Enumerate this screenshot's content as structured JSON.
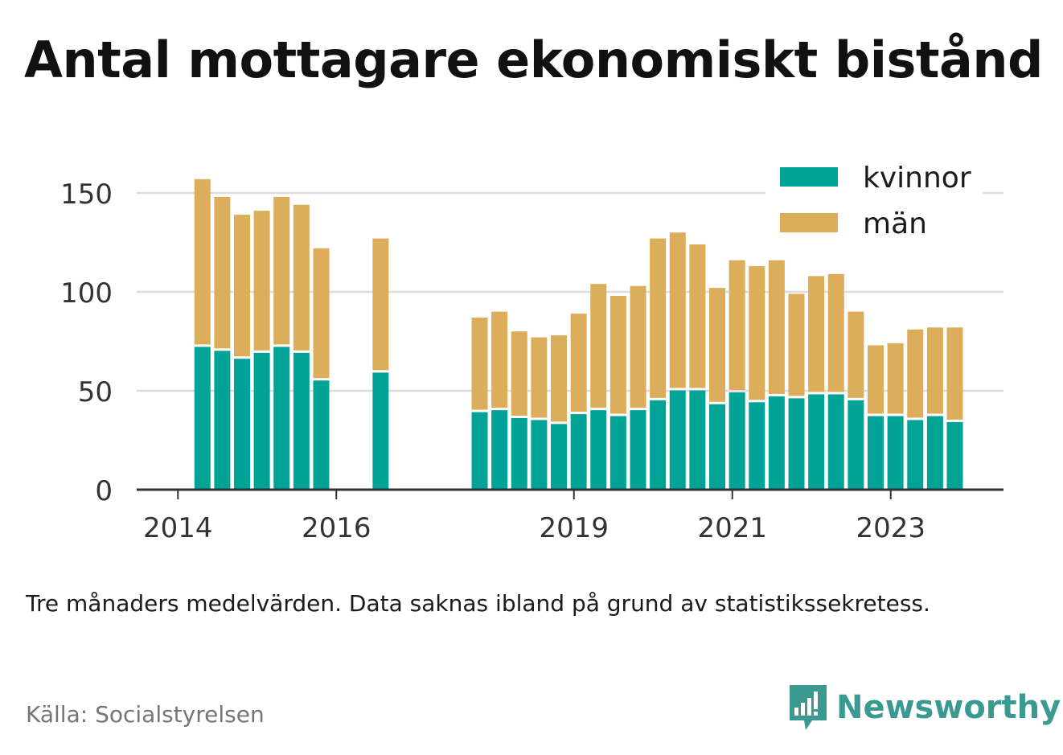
{
  "title": "Antal mottagare ekonomiskt bistånd",
  "subtitle": "Tre månaders medelvärden. Data saknas ibland på grund av statistikssekretess.",
  "source": "Källa: Socialstyrelsen",
  "logo": {
    "text": "Newsworthy",
    "icon": "newsworthy-logo-icon"
  },
  "colors": {
    "kvinnor": "#00a396",
    "man": "#dcad5b",
    "grid": "#dddddd",
    "axis": "#333333",
    "logo": "#3a9a92"
  },
  "chart_data": {
    "type": "bar",
    "stacked": true,
    "title": "Antal mottagare ekonomiskt bistånd",
    "xlabel": "",
    "ylabel": "",
    "ylim": [
      0,
      160
    ],
    "y_ticks": [
      0,
      50,
      100,
      150
    ],
    "x_range": [
      2013.75,
      2024.75
    ],
    "x_ticks": [
      {
        "x": 2014,
        "label": "2014"
      },
      {
        "x": 2016,
        "label": "2016"
      },
      {
        "x": 2019,
        "label": "2019"
      },
      {
        "x": 2021,
        "label": "2021"
      },
      {
        "x": 2023,
        "label": "2023"
      }
    ],
    "legend": {
      "position": "top-right"
    },
    "series": [
      {
        "name": "kvinnor",
        "color": "#00a396"
      },
      {
        "name": "män",
        "color": "#dcad5b"
      }
    ],
    "points": [
      {
        "x": 2014.33,
        "kvinnor": 73,
        "man": 84
      },
      {
        "x": 2014.58,
        "kvinnor": 71,
        "man": 77
      },
      {
        "x": 2014.83,
        "kvinnor": 67,
        "man": 72
      },
      {
        "x": 2015.08,
        "kvinnor": 70,
        "man": 71
      },
      {
        "x": 2015.33,
        "kvinnor": 73,
        "man": 75
      },
      {
        "x": 2015.58,
        "kvinnor": 70,
        "man": 74
      },
      {
        "x": 2015.83,
        "kvinnor": 56,
        "man": 66
      },
      {
        "x": 2016.58,
        "kvinnor": 60,
        "man": 67
      },
      {
        "x": 2017.83,
        "kvinnor": 40,
        "man": 47
      },
      {
        "x": 2018.08,
        "kvinnor": 41,
        "man": 49
      },
      {
        "x": 2018.33,
        "kvinnor": 37,
        "man": 43
      },
      {
        "x": 2018.58,
        "kvinnor": 36,
        "man": 41
      },
      {
        "x": 2018.83,
        "kvinnor": 34,
        "man": 44
      },
      {
        "x": 2019.08,
        "kvinnor": 39,
        "man": 50
      },
      {
        "x": 2019.33,
        "kvinnor": 41,
        "man": 63
      },
      {
        "x": 2019.58,
        "kvinnor": 38,
        "man": 60
      },
      {
        "x": 2019.83,
        "kvinnor": 41,
        "man": 62
      },
      {
        "x": 2020.08,
        "kvinnor": 46,
        "man": 81
      },
      {
        "x": 2020.33,
        "kvinnor": 51,
        "man": 79
      },
      {
        "x": 2020.58,
        "kvinnor": 51,
        "man": 73
      },
      {
        "x": 2020.83,
        "kvinnor": 44,
        "man": 58
      },
      {
        "x": 2021.08,
        "kvinnor": 50,
        "man": 66
      },
      {
        "x": 2021.33,
        "kvinnor": 45,
        "man": 68
      },
      {
        "x": 2021.58,
        "kvinnor": 48,
        "man": 68
      },
      {
        "x": 2021.83,
        "kvinnor": 47,
        "man": 52
      },
      {
        "x": 2022.08,
        "kvinnor": 49,
        "man": 59
      },
      {
        "x": 2022.33,
        "kvinnor": 49,
        "man": 60
      },
      {
        "x": 2022.58,
        "kvinnor": 46,
        "man": 44
      },
      {
        "x": 2022.83,
        "kvinnor": 38,
        "man": 35
      },
      {
        "x": 2023.08,
        "kvinnor": 38,
        "man": 36
      },
      {
        "x": 2023.33,
        "kvinnor": 36,
        "man": 45
      },
      {
        "x": 2023.58,
        "kvinnor": 38,
        "man": 44
      },
      {
        "x": 2023.83,
        "kvinnor": 35,
        "man": 47
      }
    ]
  }
}
